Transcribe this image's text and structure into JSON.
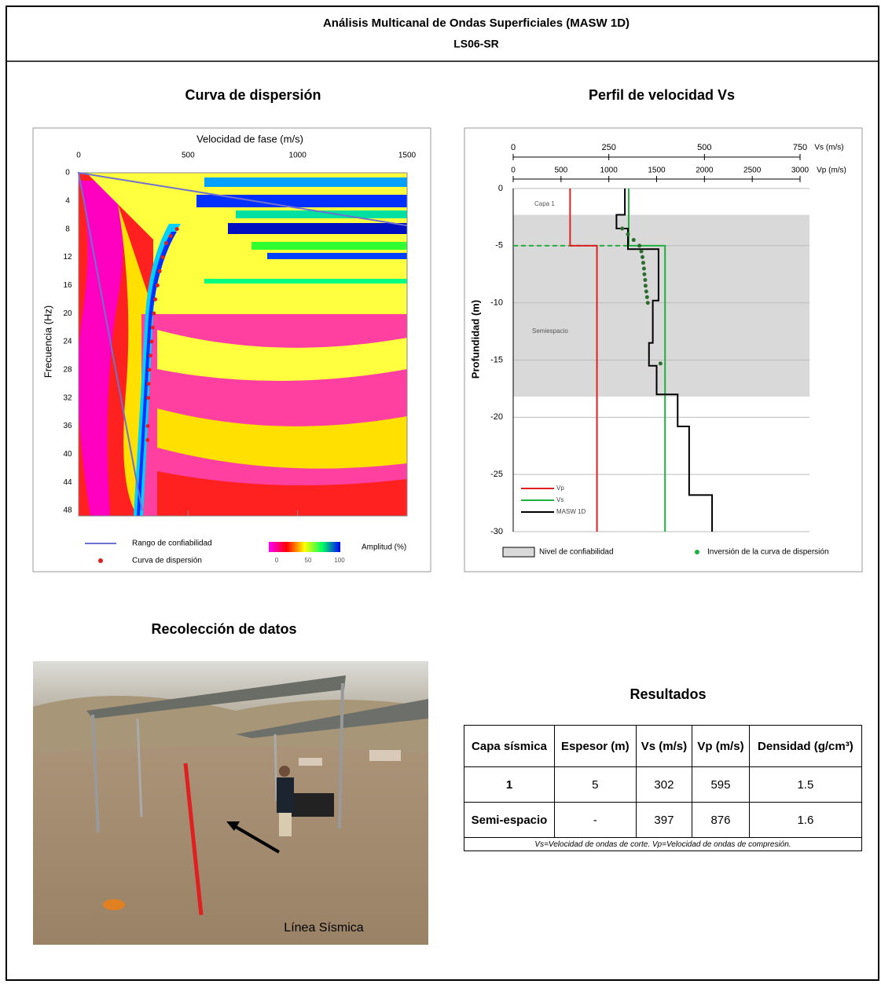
{
  "header": {
    "title": "Análisis Multicanal de Ondas Superficiales (MASW 1D)",
    "subtitle": "LS06-SR"
  },
  "chart_data": [
    {
      "type": "dispersion",
      "title": "Curva de dispersión",
      "xlabel": "Velocidad de fase (m/s)",
      "ylabel": "Frecuencia (Hz)",
      "xlim": [
        0,
        1500
      ],
      "xticks": [
        0,
        500,
        1000,
        1500
      ],
      "ylim": [
        0,
        48
      ],
      "yinvert": true,
      "yticks": [
        0,
        4,
        8,
        12,
        16,
        20,
        24,
        28,
        32,
        36,
        40,
        44,
        48
      ],
      "series": [
        {
          "name": "Rango de confiabilidad",
          "color": "#7070d0",
          "mode": "line",
          "x": [
            1500,
            0,
            290
          ],
          "y": [
            7.5,
            0,
            48
          ]
        },
        {
          "name": "Curva de dispersión",
          "color": "#e02020",
          "mode": "markers",
          "x": [
            449,
            420,
            400,
            384,
            370,
            360,
            350,
            344,
            338,
            333,
            328,
            323,
            320,
            318,
            316,
            315
          ],
          "y": [
            8,
            9,
            10,
            12,
            14,
            16,
            18,
            20,
            22,
            24,
            26,
            28,
            30,
            32,
            36,
            38
          ]
        }
      ],
      "colorbar": {
        "label": "Amplitud (%)",
        "ticks": [
          0,
          50,
          100
        ]
      }
    },
    {
      "type": "step-profile",
      "title": "Perfil de velocidad Vs",
      "ylabel": "Profundidad (m)",
      "xlabel": "Vs (m/s)",
      "xlim": [
        0,
        750
      ],
      "xticks": [
        0,
        250,
        500,
        750
      ],
      "x2label": "Vp (m/s)",
      "x2lim": [
        0,
        3000
      ],
      "x2ticks": [
        0,
        500,
        1000,
        1500,
        2000,
        2500,
        3000
      ],
      "ylim": [
        -30,
        0
      ],
      "yticks": [
        0,
        -5,
        -10,
        -15,
        -20,
        -25,
        -30
      ],
      "grid": true,
      "band": {
        "name": "Nivel de confiabilidad",
        "from": -2.3,
        "to": -18.2,
        "color": "#d9d9d9"
      },
      "annotations": [
        "Capa 1",
        "Semiespacio"
      ],
      "series": [
        {
          "name": "Vp",
          "color": "#e02020",
          "mode": "line",
          "axis": "x2",
          "x": [
            595,
            595,
            876,
            876
          ],
          "y": [
            0,
            -5,
            -5,
            -30
          ]
        },
        {
          "name": "Vs",
          "color": "#20b040",
          "mode": "line",
          "x": [
            302,
            302,
            397,
            397
          ],
          "y": [
            0,
            -5,
            -5,
            -30
          ]
        },
        {
          "name": "MASW 1D",
          "color": "#000000",
          "mode": "line",
          "x": [
            292,
            292,
            270,
            270,
            300,
            300,
            380,
            380,
            365,
            365,
            355,
            355,
            375,
            375,
            430,
            430,
            460,
            460,
            520,
            520
          ],
          "y": [
            0,
            -2.3,
            -2.3,
            -3.5,
            -3.5,
            -5.3,
            -5.3,
            -9.8,
            -9.8,
            -13.5,
            -13.5,
            -15.5,
            -15.5,
            -18,
            -18,
            -20.8,
            -20.8,
            -26.8,
            -26.8,
            -30
          ]
        },
        {
          "name": "Inversión de la curva de dispersión",
          "color": "#2e6b2e",
          "mode": "markers",
          "x": [
            285,
            300,
            315,
            330,
            335,
            338,
            340,
            342,
            343,
            345,
            346,
            348,
            350,
            352,
            385
          ],
          "y": [
            -3.5,
            -4,
            -4.5,
            -5,
            -5.5,
            -6,
            -6.5,
            -7,
            -7.5,
            -8,
            -8.5,
            -9,
            -9.5,
            -10,
            -15.3
          ]
        }
      ]
    }
  ],
  "photo": {
    "title": "Recolección de datos",
    "caption": "Línea Sísmica"
  },
  "table": {
    "title": "Resultados",
    "headers": [
      "Capa sísmica",
      "Espesor (m)",
      "Vs (m/s)",
      "Vp (m/s)",
      "Densidad (g/cm³)"
    ],
    "rows": [
      [
        1,
        5,
        302,
        595,
        1.5
      ],
      [
        "Semi-espacio",
        "-",
        397,
        876,
        1.6
      ]
    ],
    "note": "Vs=Velocidad de ondas de corte.   Vp=Velocidad de ondas de compresión."
  }
}
